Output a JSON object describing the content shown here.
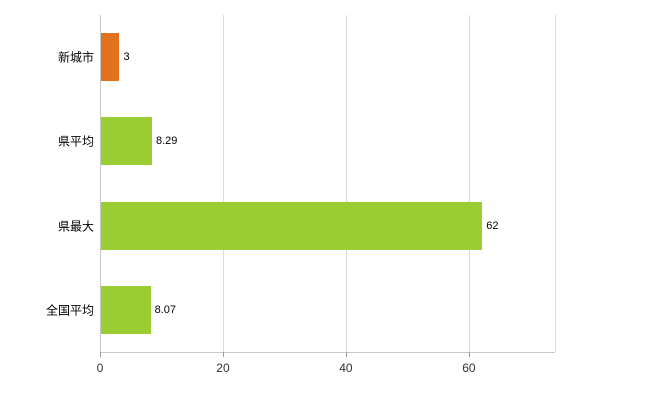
{
  "chart_data": {
    "type": "bar",
    "orientation": "horizontal",
    "title": "",
    "xlabel": "",
    "ylabel": "",
    "categories": [
      "新城市",
      "県平均",
      "県最大",
      "全国平均"
    ],
    "values": [
      3,
      8.29,
      62,
      8.07
    ],
    "value_labels": [
      "3",
      "8.29",
      "62",
      "8.07"
    ],
    "bar_colors": [
      "#e2711d",
      "#9acd32",
      "#9acd32",
      "#9acd32"
    ],
    "xticks": [
      0,
      20,
      40,
      60
    ],
    "xtick_labels": [
      "0",
      "20",
      "40",
      "60"
    ],
    "xlim": [
      0,
      74
    ],
    "grid": true,
    "legend": "none",
    "background_color": "#ffffff",
    "gridline_color": "#dcdcdc",
    "axis_color": "#c8c8c8"
  }
}
